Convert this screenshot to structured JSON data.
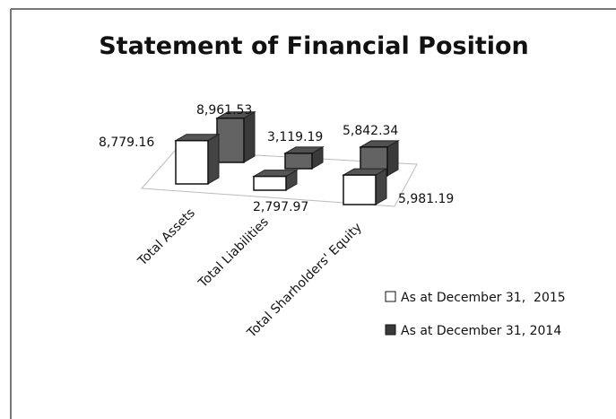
{
  "chart_data": {
    "type": "bar3d",
    "title": "Statement of Financial Position",
    "categories": [
      "Total Assets",
      "Total Liabilities",
      "Total Sharholders' Equity"
    ],
    "series": [
      {
        "name": "As at December 31,  2015",
        "color": "#ffffff",
        "values": [
          8779.16,
          2797.97,
          5981.19
        ],
        "value_labels": [
          "8,779.16",
          "2,797.97",
          "5,981.19"
        ]
      },
      {
        "name": "As at December 31, 2014",
        "color": "#3a3a3a",
        "values": [
          8961.53,
          3119.19,
          5842.34
        ],
        "value_labels": [
          "8,961.53",
          "3,119.19",
          "5,842.34"
        ]
      }
    ]
  }
}
